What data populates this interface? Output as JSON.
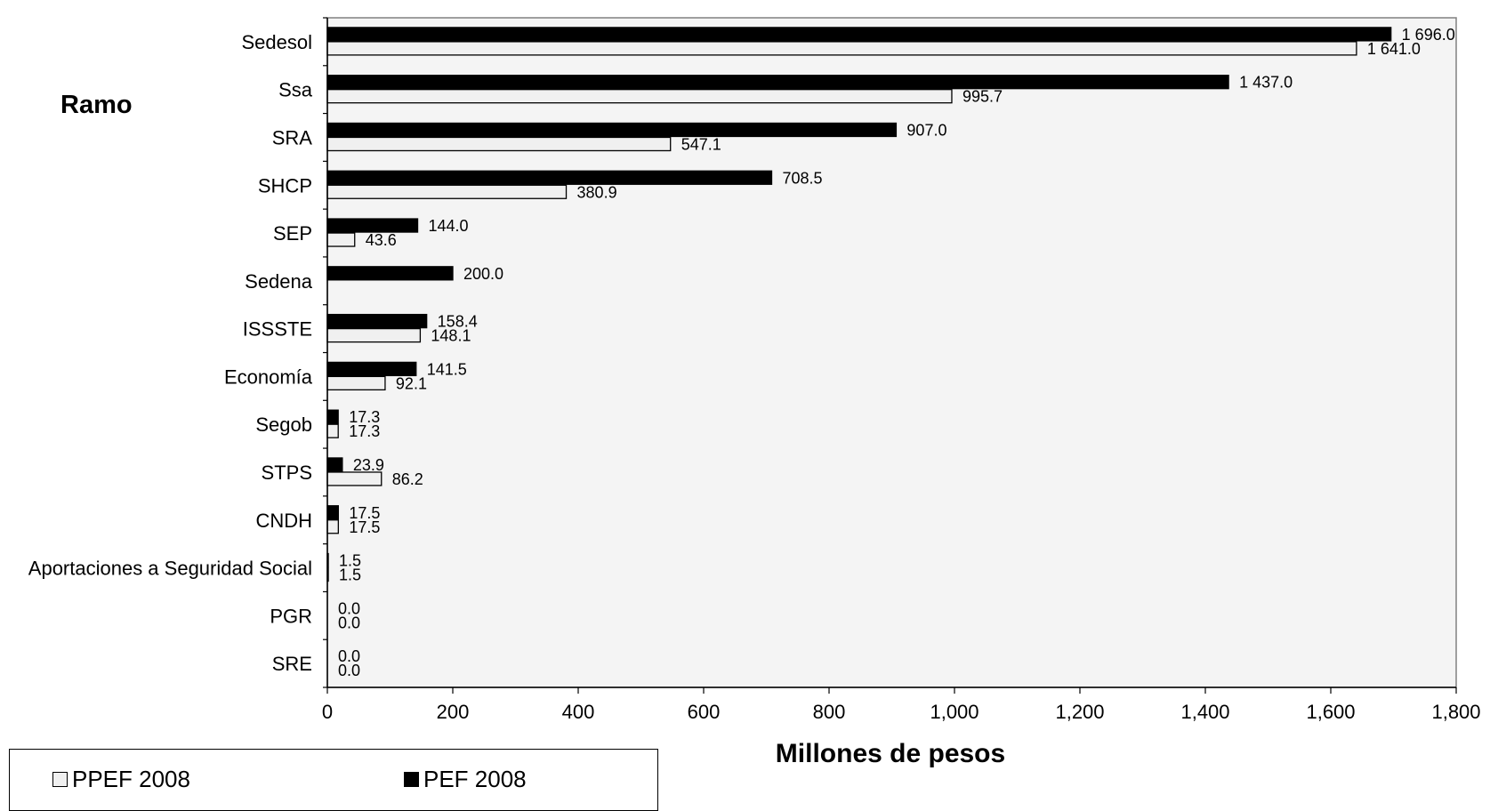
{
  "chart_data": {
    "type": "bar",
    "orientation": "horizontal",
    "ylabel": "Ramo",
    "xlabel": "Millones de pesos",
    "xlim": [
      0,
      1800
    ],
    "xticks": [
      "0",
      "200",
      "400",
      "600",
      "800",
      "1,000",
      "1,200",
      "1,400",
      "1,600",
      "1,800"
    ],
    "xtick_values": [
      0,
      200,
      400,
      600,
      800,
      1000,
      1200,
      1400,
      1600,
      1800
    ],
    "grid": false,
    "legend_position": "bottom-left",
    "categories": [
      "Sedesol",
      "Ssa",
      "SRA",
      "SHCP",
      "SEP",
      "Sedena",
      "ISSSTE",
      "Economía",
      "Segob",
      "STPS",
      "CNDH",
      "Aportaciones a Seguridad Social",
      "PGR",
      "SRE"
    ],
    "series": [
      {
        "name": "PPEF 2008",
        "color": "#f0f0f0",
        "values": [
          1641.0,
          995.7,
          547.1,
          380.9,
          43.6,
          null,
          148.1,
          92.1,
          17.3,
          86.2,
          17.5,
          1.5,
          0.0,
          0.0
        ],
        "labels": [
          "1 641.0",
          "995.7",
          "547.1",
          "380.9",
          "43.6",
          "",
          "148.1",
          "92.1",
          "17.3",
          "86.2",
          "17.5",
          "1.5",
          "0.0",
          "0.0"
        ]
      },
      {
        "name": "PEF 2008",
        "color": "#000000",
        "values": [
          1696.0,
          1437.0,
          907.0,
          708.5,
          144.0,
          200.0,
          158.4,
          141.5,
          17.3,
          23.9,
          17.5,
          1.5,
          0.0,
          0.0
        ],
        "labels": [
          "1 696.0",
          "1 437.0",
          "907.0",
          "708.5",
          "144.0",
          "200.0",
          "158.4",
          "141.5",
          "17.3",
          "23.9",
          "17.5",
          "1.5",
          "0.0",
          "0.0"
        ]
      }
    ]
  }
}
